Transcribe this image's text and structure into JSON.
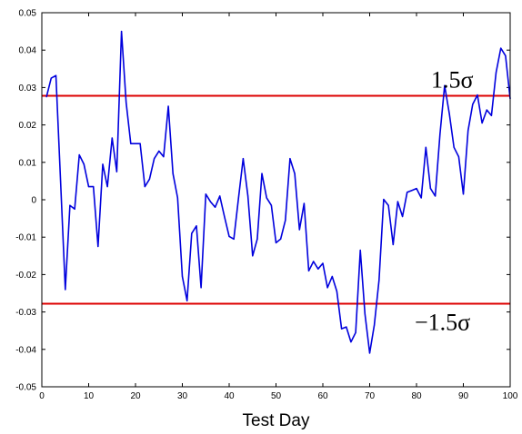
{
  "chart_data": {
    "type": "line",
    "title": "",
    "xlabel": "Test Day",
    "ylabel": "",
    "xlim": [
      0,
      100
    ],
    "ylim": [
      -0.05,
      0.05
    ],
    "grid": false,
    "legend": "none",
    "x_ticks": [
      0,
      10,
      20,
      30,
      40,
      50,
      60,
      70,
      80,
      90,
      100
    ],
    "y_ticks": [
      -0.05,
      -0.04,
      -0.03,
      -0.02,
      -0.01,
      0,
      0.01,
      0.02,
      0.03,
      0.04,
      0.05
    ],
    "x_tick_labels": [
      "0",
      "10",
      "20",
      "30",
      "40",
      "50",
      "60",
      "70",
      "80",
      "90",
      "100"
    ],
    "y_tick_labels": [
      "-0.05",
      "-0.04",
      "-0.03",
      "-0.02",
      "-0.01",
      "0",
      "0.01",
      "0.02",
      "0.03",
      "0.04",
      "0.05"
    ],
    "series": [
      {
        "color": "#0000dd",
        "x": [
          1,
          2,
          3,
          4,
          5,
          6,
          7,
          8,
          9,
          10,
          11,
          12,
          13,
          14,
          15,
          16,
          17,
          18,
          19,
          20,
          21,
          22,
          23,
          24,
          25,
          26,
          27,
          28,
          29,
          30,
          31,
          32,
          33,
          34,
          35,
          36,
          37,
          38,
          39,
          40,
          41,
          42,
          43,
          44,
          45,
          46,
          47,
          48,
          49,
          50,
          51,
          52,
          53,
          54,
          55,
          56,
          57,
          58,
          59,
          60,
          61,
          62,
          63,
          64,
          65,
          66,
          67,
          68,
          69,
          70,
          71,
          72,
          73,
          74,
          75,
          76,
          77,
          78,
          79,
          80,
          81,
          82,
          83,
          84,
          85,
          86,
          87,
          88,
          89,
          90,
          91,
          92,
          93,
          94,
          95,
          96,
          97,
          98,
          99,
          100
        ],
        "values": [
          0.0275,
          0.0325,
          0.0332,
          0.005,
          -0.024,
          -0.0015,
          -0.0025,
          0.012,
          0.0095,
          0.0035,
          0.0035,
          -0.0125,
          0.0095,
          0.0035,
          0.0165,
          0.0075,
          0.045,
          0.026,
          0.015,
          0.015,
          0.015,
          0.0035,
          0.0055,
          0.011,
          0.013,
          0.0115,
          0.025,
          0.007,
          0.0005,
          -0.0205,
          -0.027,
          -0.009,
          -0.007,
          -0.0235,
          0.0015,
          -0.0005,
          -0.002,
          0.001,
          -0.0045,
          -0.0098,
          -0.0105,
          0.0005,
          0.011,
          0.001,
          -0.015,
          -0.0105,
          0.007,
          0.0005,
          -0.0015,
          -0.0115,
          -0.0105,
          -0.0055,
          0.011,
          0.007,
          -0.008,
          -0.001,
          -0.019,
          -0.0165,
          -0.0185,
          -0.017,
          -0.0235,
          -0.0205,
          -0.0245,
          -0.0345,
          -0.034,
          -0.038,
          -0.0355,
          -0.0135,
          -0.0305,
          -0.041,
          -0.0335,
          -0.0215,
          0.0001,
          -0.0015,
          -0.012,
          -0.0005,
          -0.0045,
          0.002,
          0.0025,
          0.003,
          0.0005,
          0.014,
          0.003,
          0.001,
          0.0175,
          0.0305,
          0.023,
          0.014,
          0.0115,
          0.0015,
          0.0185,
          0.0255,
          0.028,
          0.0205,
          0.024,
          0.0225,
          0.034,
          0.0405,
          0.0385,
          0.027
        ]
      }
    ],
    "reference_lines": [
      {
        "y": 0.0278,
        "label": "1.5σ",
        "color": "#dd0000"
      },
      {
        "y": -0.0278,
        "label": "−1.5σ",
        "color": "#dd0000"
      }
    ]
  }
}
